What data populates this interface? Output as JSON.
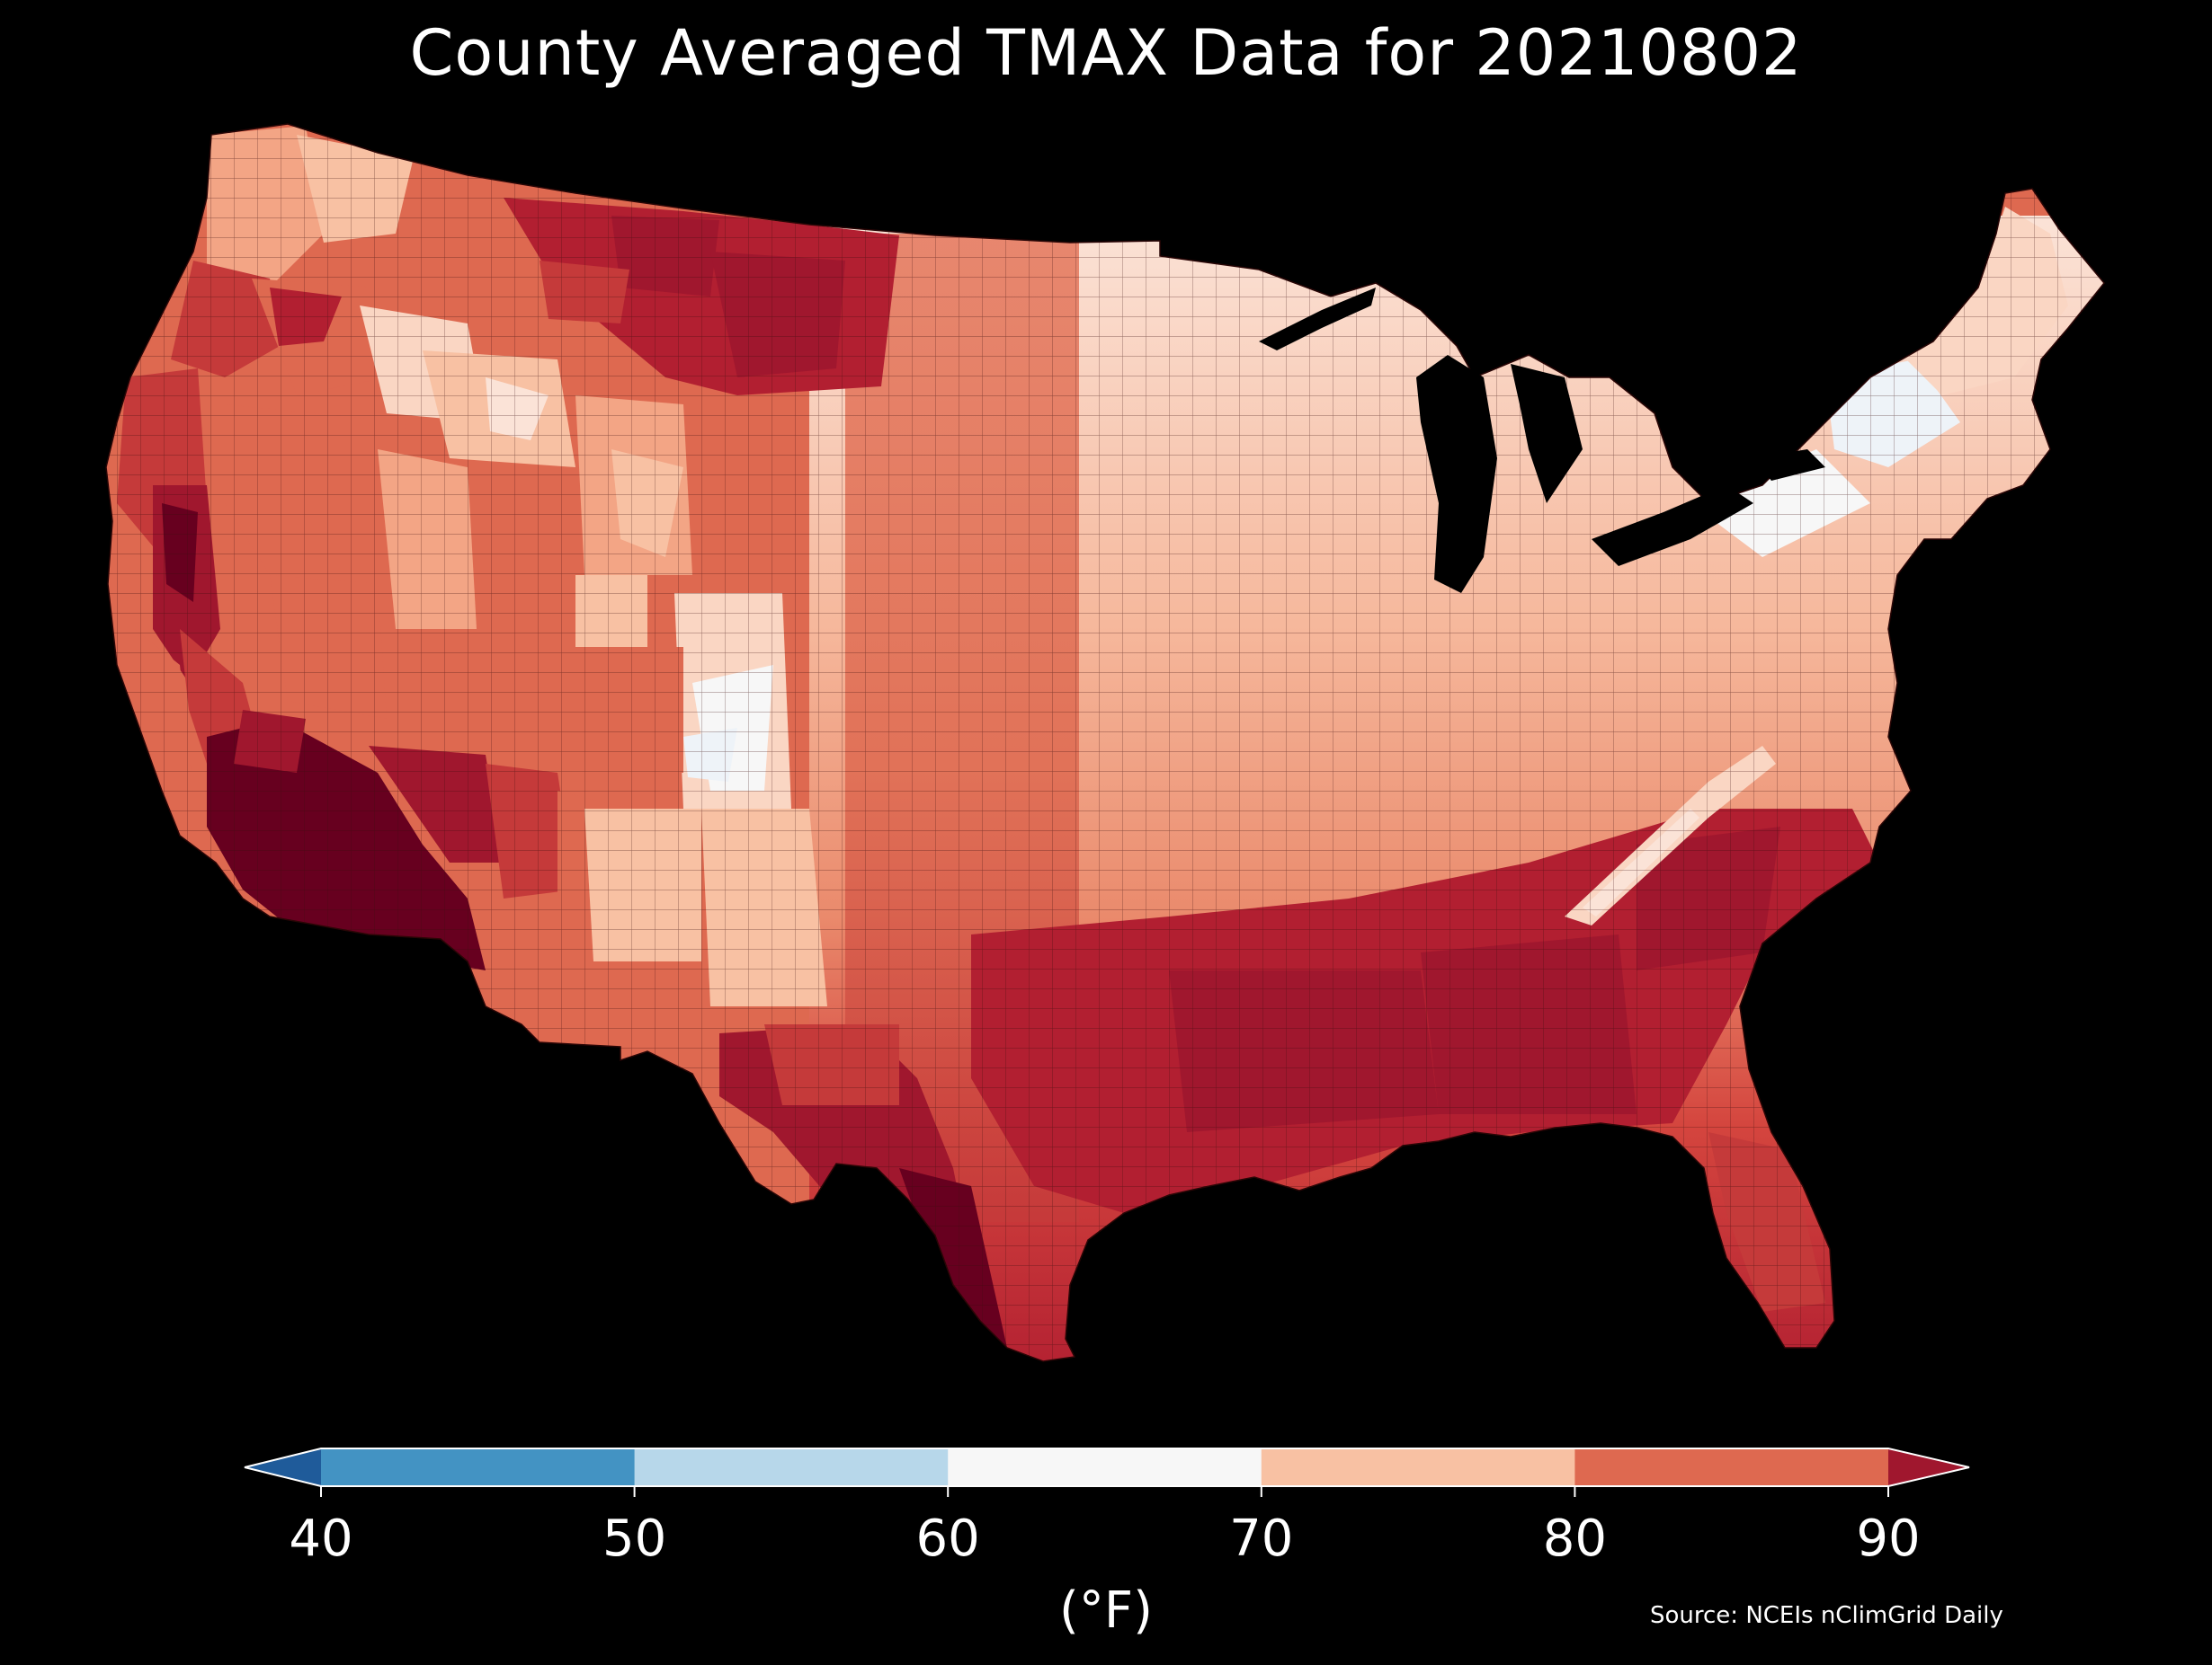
{
  "title": "County Averaged TMAX Data for 20210802",
  "colorbar": {
    "label": "(°F)",
    "ticks": [
      "40",
      "50",
      "60",
      "70",
      "80",
      "90"
    ],
    "bins": [
      {
        "range": "<40",
        "color": "#1f5b9a"
      },
      {
        "range": "40-50",
        "color": "#4393c3"
      },
      {
        "range": "50-60",
        "color": "#b7d7ea"
      },
      {
        "range": "60-70",
        "color": "#f7f7f7"
      },
      {
        "range": "70-80",
        "color": "#f8c1a3"
      },
      {
        "range": "80-90",
        "color": "#de6950"
      },
      {
        "range": ">90",
        "color": "#a0172e"
      }
    ],
    "extend": "both"
  },
  "source": "Source: NCEIs nClimGrid Daily",
  "map": {
    "region": "contiguous-united-states",
    "background": "#000000",
    "palette": {
      "hottest": "#67001f",
      "very_hot": "#a0172e",
      "hot": "#c53a3a",
      "warm": "#de6950",
      "mild": "#f3a585",
      "cool": "#fad6c3",
      "coolest": "#eef3f8"
    }
  }
}
